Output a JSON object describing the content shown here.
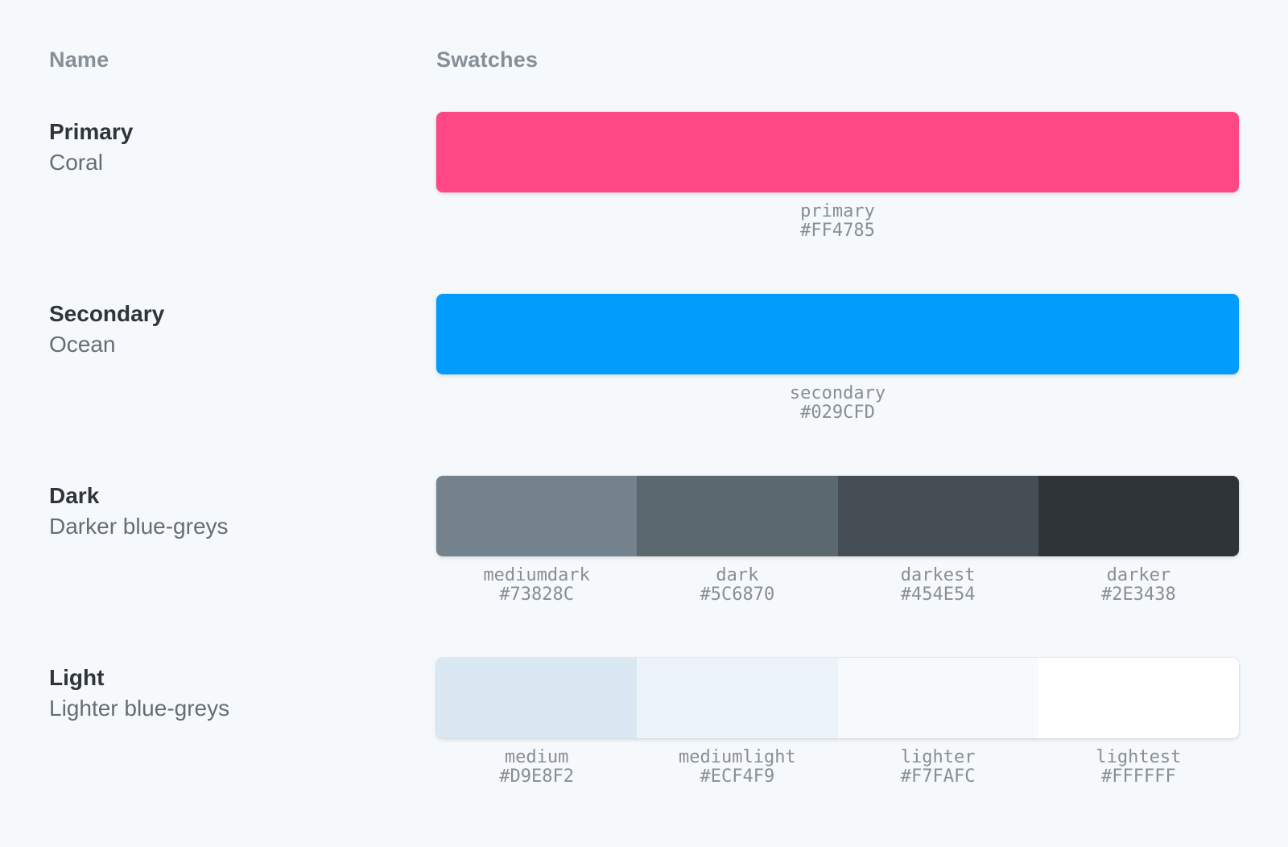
{
  "page": {
    "background_color": "#F6F9FC"
  },
  "table": {
    "headers": {
      "name": "Name",
      "swatches": "Swatches"
    },
    "rows": [
      {
        "title": "Primary",
        "subtitle": "Coral",
        "swatches": [
          {
            "name": "primary",
            "hex": "#FF4785",
            "textured": false
          }
        ]
      },
      {
        "title": "Secondary",
        "subtitle": "Ocean",
        "swatches": [
          {
            "name": "secondary",
            "hex": "#029CFD",
            "textured": false
          }
        ]
      },
      {
        "title": "Dark",
        "subtitle": "Darker blue-greys",
        "swatches": [
          {
            "name": "mediumdark",
            "hex": "#73828C",
            "textured": false
          },
          {
            "name": "dark",
            "hex": "#5C6870",
            "textured": false
          },
          {
            "name": "darkest",
            "hex": "#454E54",
            "textured": false
          },
          {
            "name": "darker",
            "hex": "#2E3438",
            "textured": false
          }
        ]
      },
      {
        "title": "Light",
        "subtitle": "Lighter blue-greys",
        "swatches": [
          {
            "name": "medium",
            "hex": "#D9E8F2",
            "textured": false
          },
          {
            "name": "mediumlight",
            "hex": "#ECF4F9",
            "textured": false
          },
          {
            "name": "lighter",
            "hex": "#F7FAFC",
            "textured": true
          },
          {
            "name": "lightest",
            "hex": "#FFFFFF",
            "textured": false
          }
        ]
      }
    ]
  }
}
